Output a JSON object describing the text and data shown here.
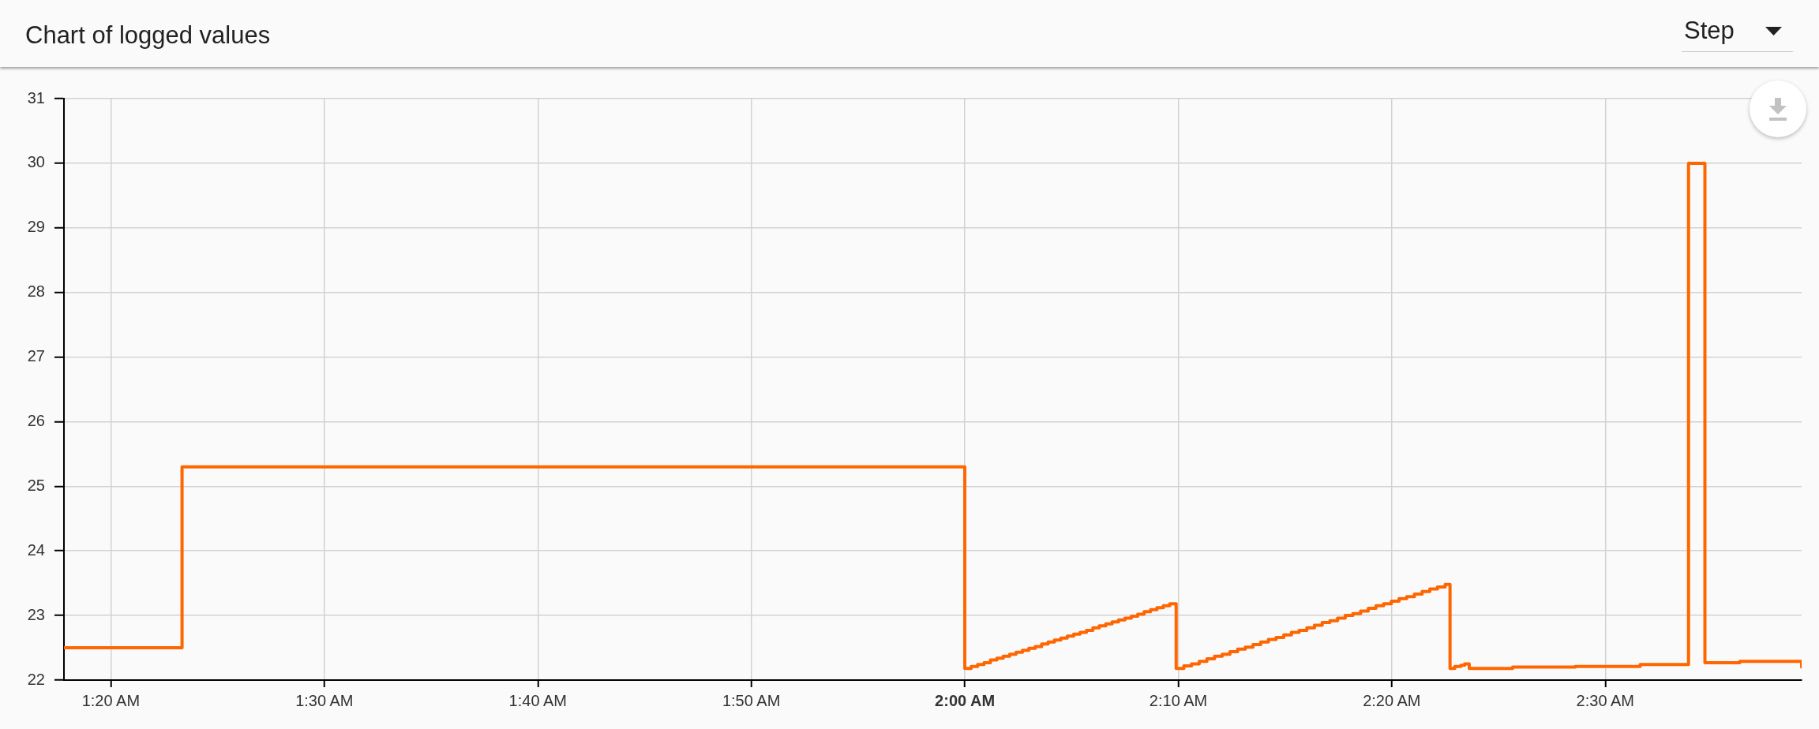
{
  "chart_data": {
    "type": "step",
    "title": "Chart of logged values",
    "annotations": [
      "Step"
    ],
    "x": [
      1.2967,
      1.3889,
      2.0,
      2.005,
      2.01,
      2.015,
      2.02,
      2.025,
      2.03,
      2.035,
      2.04,
      2.045,
      2.05,
      2.055,
      2.06,
      2.065,
      2.07,
      2.075,
      2.08,
      2.085,
      2.09,
      2.095,
      2.1,
      2.105,
      2.11,
      2.115,
      2.12,
      2.125,
      2.13,
      2.135,
      2.14,
      2.145,
      2.15,
      2.155,
      2.16,
      2.165,
      2.171,
      2.177,
      2.183,
      2.189,
      2.195,
      2.201,
      2.207,
      2.213,
      2.219,
      2.225,
      2.231,
      2.237,
      2.243,
      2.249,
      2.255,
      2.261,
      2.267,
      2.273,
      2.279,
      2.285,
      2.291,
      2.297,
      2.303,
      2.309,
      2.315,
      2.321,
      2.327,
      2.333,
      2.339,
      2.345,
      2.351,
      2.357,
      2.363,
      2.369,
      2.375,
      2.3788,
      2.3825,
      2.3872,
      2.3902,
      2.3938,
      2.4277,
      2.4767,
      2.5273,
      2.565,
      2.5778,
      2.605,
      2.6533
    ],
    "series": [
      {
        "color": "#ff6600",
        "values": [
          22.5,
          25.3,
          22.18,
          22.21,
          22.24,
          22.27,
          22.31,
          22.34,
          22.37,
          22.4,
          22.43,
          22.46,
          22.49,
          22.52,
          22.56,
          22.59,
          22.62,
          22.65,
          22.68,
          22.71,
          22.74,
          22.77,
          22.81,
          22.84,
          22.87,
          22.9,
          22.93,
          22.96,
          22.99,
          23.02,
          23.06,
          23.09,
          23.12,
          23.15,
          23.18,
          22.18,
          22.22,
          22.25,
          22.29,
          22.33,
          22.37,
          22.4,
          22.44,
          22.48,
          22.51,
          22.55,
          22.59,
          22.63,
          22.66,
          22.7,
          22.74,
          22.77,
          22.81,
          22.85,
          22.89,
          22.92,
          22.96,
          23.0,
          23.03,
          23.07,
          23.11,
          23.15,
          23.18,
          23.22,
          23.26,
          23.29,
          23.33,
          23.37,
          23.41,
          23.44,
          23.48,
          22.18,
          22.21,
          22.23,
          22.25,
          22.18,
          22.2,
          22.21,
          22.24,
          30,
          22.27,
          22.29,
          22.2
        ]
      }
    ],
    "xlim": [
      1.2967,
      2.6533
    ],
    "ylim": [
      22,
      31
    ],
    "xticks": [
      {
        "value": 1.3333,
        "label": "1:20 AM"
      },
      {
        "value": 1.5,
        "label": "1:30 AM"
      },
      {
        "value": 1.6667,
        "label": "1:40 AM"
      },
      {
        "value": 1.8333,
        "label": "1:50 AM"
      },
      {
        "value": 2,
        "label": "2:00 AM"
      },
      {
        "value": 2.1667,
        "label": "2:10 AM"
      },
      {
        "value": 2.3333,
        "label": "2:20 AM"
      },
      {
        "value": 2.5,
        "label": "2:30 AM"
      }
    ],
    "yticks": [
      22,
      23,
      24,
      25,
      26,
      27,
      28,
      29,
      30,
      31
    ],
    "grid": true
  }
}
